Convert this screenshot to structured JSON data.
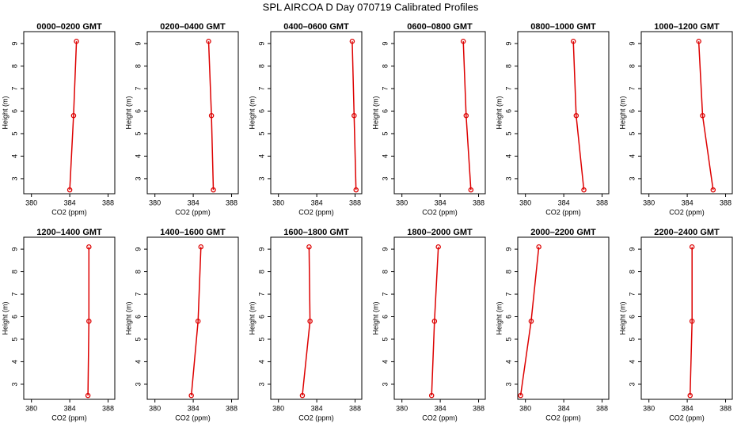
{
  "title": "SPL AIRCOA D  Day 070719  Calibrated Profiles",
  "chart_data": [
    {
      "type": "line",
      "title": "0000–0200 GMT",
      "x_label": "CO2 (ppm)",
      "y_label": "Height (m)",
      "color": "#dd0000",
      "xlim": [
        379.2,
        388.7
      ],
      "ylim": [
        2.33,
        9.53
      ],
      "xticks": [
        380,
        384,
        388
      ],
      "yticks": [
        3,
        4,
        5,
        6,
        7,
        8,
        9
      ],
      "x": [
        384.0,
        384.4,
        384.7
      ],
      "values": [
        2.5,
        5.8,
        9.1
      ]
    },
    {
      "type": "line",
      "title": "0200–0400 GMT",
      "x_label": "CO2 (ppm)",
      "y_label": "Height (m)",
      "color": "#dd0000",
      "xlim": [
        379.2,
        388.7
      ],
      "ylim": [
        2.33,
        9.53
      ],
      "xticks": [
        380,
        384,
        388
      ],
      "yticks": [
        3,
        4,
        5,
        6,
        7,
        8,
        9
      ],
      "x": [
        386.1,
        385.9,
        385.6
      ],
      "values": [
        2.5,
        5.8,
        9.1
      ]
    },
    {
      "type": "line",
      "title": "0400–0600 GMT",
      "x_label": "CO2 (ppm)",
      "y_label": "Height (m)",
      "color": "#dd0000",
      "xlim": [
        379.2,
        388.7
      ],
      "ylim": [
        2.33,
        9.53
      ],
      "xticks": [
        380,
        384,
        388
      ],
      "yticks": [
        3,
        4,
        5,
        6,
        7,
        8,
        9
      ],
      "x": [
        388.1,
        387.9,
        387.7
      ],
      "values": [
        2.5,
        5.8,
        9.1
      ]
    },
    {
      "type": "line",
      "title": "0600–0800 GMT",
      "x_label": "CO2 (ppm)",
      "y_label": "Height (m)",
      "color": "#dd0000",
      "xlim": [
        379.2,
        388.7
      ],
      "ylim": [
        2.33,
        9.53
      ],
      "xticks": [
        380,
        384,
        388
      ],
      "yticks": [
        3,
        4,
        5,
        6,
        7,
        8,
        9
      ],
      "x": [
        387.2,
        386.7,
        386.4
      ],
      "values": [
        2.5,
        5.8,
        9.1
      ]
    },
    {
      "type": "line",
      "title": "0800–1000 GMT",
      "x_label": "CO2 (ppm)",
      "y_label": "Height (m)",
      "color": "#dd0000",
      "xlim": [
        379.2,
        388.7
      ],
      "ylim": [
        2.33,
        9.53
      ],
      "xticks": [
        380,
        384,
        388
      ],
      "yticks": [
        3,
        4,
        5,
        6,
        7,
        8,
        9
      ],
      "x": [
        386.1,
        385.3,
        385.0
      ],
      "values": [
        2.5,
        5.8,
        9.1
      ]
    },
    {
      "type": "line",
      "title": "1000–1200 GMT",
      "x_label": "CO2 (ppm)",
      "y_label": "Height (m)",
      "color": "#dd0000",
      "xlim": [
        379.2,
        388.7
      ],
      "ylim": [
        2.33,
        9.53
      ],
      "xticks": [
        380,
        384,
        388
      ],
      "yticks": [
        3,
        4,
        5,
        6,
        7,
        8,
        9
      ],
      "x": [
        386.7,
        385.6,
        385.2
      ],
      "values": [
        2.5,
        5.8,
        9.1
      ]
    },
    {
      "type": "line",
      "title": "1200–1400 GMT",
      "x_label": "CO2 (ppm)",
      "y_label": "Height (m)",
      "color": "#dd0000",
      "xlim": [
        379.2,
        388.7
      ],
      "ylim": [
        2.33,
        9.53
      ],
      "xticks": [
        380,
        384,
        388
      ],
      "yticks": [
        3,
        4,
        5,
        6,
        7,
        8,
        9
      ],
      "x": [
        385.9,
        386.0,
        386.0
      ],
      "values": [
        2.5,
        5.8,
        9.1
      ]
    },
    {
      "type": "line",
      "title": "1400–1600 GMT",
      "x_label": "CO2 (ppm)",
      "y_label": "Height (m)",
      "color": "#dd0000",
      "xlim": [
        379.2,
        388.7
      ],
      "ylim": [
        2.33,
        9.53
      ],
      "xticks": [
        380,
        384,
        388
      ],
      "yticks": [
        3,
        4,
        5,
        6,
        7,
        8,
        9
      ],
      "x": [
        383.8,
        384.5,
        384.8
      ],
      "values": [
        2.5,
        5.8,
        9.1
      ]
    },
    {
      "type": "line",
      "title": "1600–1800 GMT",
      "x_label": "CO2 (ppm)",
      "y_label": "Height (m)",
      "color": "#dd0000",
      "xlim": [
        379.2,
        388.7
      ],
      "ylim": [
        2.33,
        9.53
      ],
      "xticks": [
        380,
        384,
        388
      ],
      "yticks": [
        3,
        4,
        5,
        6,
        7,
        8,
        9
      ],
      "x": [
        382.5,
        383.3,
        383.2
      ],
      "values": [
        2.5,
        5.8,
        9.1
      ]
    },
    {
      "type": "line",
      "title": "1800–2000 GMT",
      "x_label": "CO2 (ppm)",
      "y_label": "Height (m)",
      "color": "#dd0000",
      "xlim": [
        379.2,
        388.7
      ],
      "ylim": [
        2.33,
        9.53
      ],
      "xticks": [
        380,
        384,
        388
      ],
      "yticks": [
        3,
        4,
        5,
        6,
        7,
        8,
        9
      ],
      "x": [
        383.1,
        383.4,
        383.8
      ],
      "values": [
        2.5,
        5.8,
        9.1
      ]
    },
    {
      "type": "line",
      "title": "2000–2200 GMT",
      "x_label": "CO2 (ppm)",
      "y_label": "Height (m)",
      "color": "#dd0000",
      "xlim": [
        379.2,
        388.7
      ],
      "ylim": [
        2.33,
        9.53
      ],
      "xticks": [
        380,
        384,
        388
      ],
      "yticks": [
        3,
        4,
        5,
        6,
        7,
        8,
        9
      ],
      "x": [
        379.5,
        380.6,
        381.4
      ],
      "values": [
        2.5,
        5.8,
        9.1
      ]
    },
    {
      "type": "line",
      "title": "2200–2400 GMT",
      "x_label": "CO2 (ppm)",
      "y_label": "Height (m)",
      "color": "#dd0000",
      "xlim": [
        379.2,
        388.7
      ],
      "ylim": [
        2.33,
        9.53
      ],
      "xticks": [
        380,
        384,
        388
      ],
      "yticks": [
        3,
        4,
        5,
        6,
        7,
        8,
        9
      ],
      "x": [
        384.3,
        384.5,
        384.5
      ],
      "values": [
        2.5,
        5.8,
        9.1
      ]
    }
  ]
}
